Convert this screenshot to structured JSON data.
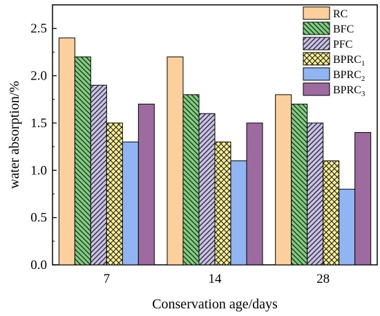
{
  "chart_data": {
    "type": "bar",
    "xlabel": "Conservation age/days",
    "ylabel": "water absorption/%",
    "categories": [
      "7",
      "14",
      "28"
    ],
    "ylim": [
      0,
      2.75
    ],
    "yticks": [
      "0.0",
      "0.5",
      "1.0",
      "1.5",
      "2.0",
      "2.5"
    ],
    "legend_position": "top-right",
    "grid": false,
    "series": [
      {
        "name": "RC",
        "label_main": "RC",
        "label_sub": "",
        "color": "#fcd09c",
        "pattern": "solid",
        "values": [
          2.4,
          2.2,
          1.8
        ]
      },
      {
        "name": "BFC",
        "label_main": "BFC",
        "label_sub": "",
        "color": "#7dcf7d",
        "pattern": "diag-down",
        "values": [
          2.2,
          1.8,
          1.7
        ]
      },
      {
        "name": "PFC",
        "label_main": "PFC",
        "label_sub": "",
        "color": "#c9c1e6",
        "pattern": "diag-up",
        "values": [
          1.9,
          1.6,
          1.5
        ]
      },
      {
        "name": "BPRC1",
        "label_main": "BPRC",
        "label_sub": "1",
        "color": "#fbf191",
        "pattern": "cross",
        "values": [
          1.5,
          1.3,
          1.1
        ]
      },
      {
        "name": "BPRC2",
        "label_main": "BPRC",
        "label_sub": "2",
        "color": "#91b5f2",
        "pattern": "solid",
        "values": [
          1.3,
          1.1,
          0.8
        ]
      },
      {
        "name": "BPRC3",
        "label_main": "BPRC",
        "label_sub": "3",
        "color": "#9e6ba1",
        "pattern": "solid",
        "values": [
          1.7,
          1.5,
          1.4
        ]
      }
    ]
  }
}
